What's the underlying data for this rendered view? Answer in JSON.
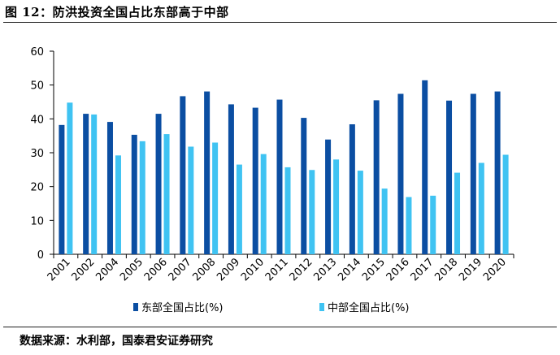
{
  "figure": {
    "title": "图 12：防洪投资全国占比东部高于中部",
    "source": "数据来源：水利部，国泰君安证券研究"
  },
  "colors": {
    "east": "#0b4ea2",
    "central": "#3fc3f2",
    "axis": "#000000"
  },
  "chart_data": {
    "type": "bar",
    "title": "",
    "xlabel": "",
    "ylabel": "",
    "ylim": [
      0,
      60
    ],
    "yticks": [
      0,
      10,
      20,
      30,
      40,
      50,
      60
    ],
    "grid": false,
    "legend_position": "bottom",
    "categories": [
      "2001",
      "2002",
      "2004",
      "2005",
      "2006",
      "2007",
      "2008",
      "2009",
      "2010",
      "2011",
      "2012",
      "2013",
      "2014",
      "2015",
      "2016",
      "2017",
      "2018",
      "2019",
      "2020"
    ],
    "series": [
      {
        "name": "东部全国占比(%)",
        "values": [
          38.2,
          41.5,
          39.1,
          35.3,
          41.5,
          46.7,
          48.1,
          44.3,
          43.3,
          45.7,
          40.3,
          33.9,
          38.4,
          45.5,
          47.4,
          51.4,
          45.4,
          47.4,
          48.1
        ]
      },
      {
        "name": "中部全国占比(%)",
        "values": [
          44.8,
          41.3,
          29.2,
          33.4,
          35.5,
          31.8,
          33.0,
          26.5,
          29.6,
          25.7,
          24.9,
          28.0,
          24.7,
          19.4,
          16.9,
          17.3,
          24.1,
          27.0,
          29.4
        ]
      }
    ]
  }
}
